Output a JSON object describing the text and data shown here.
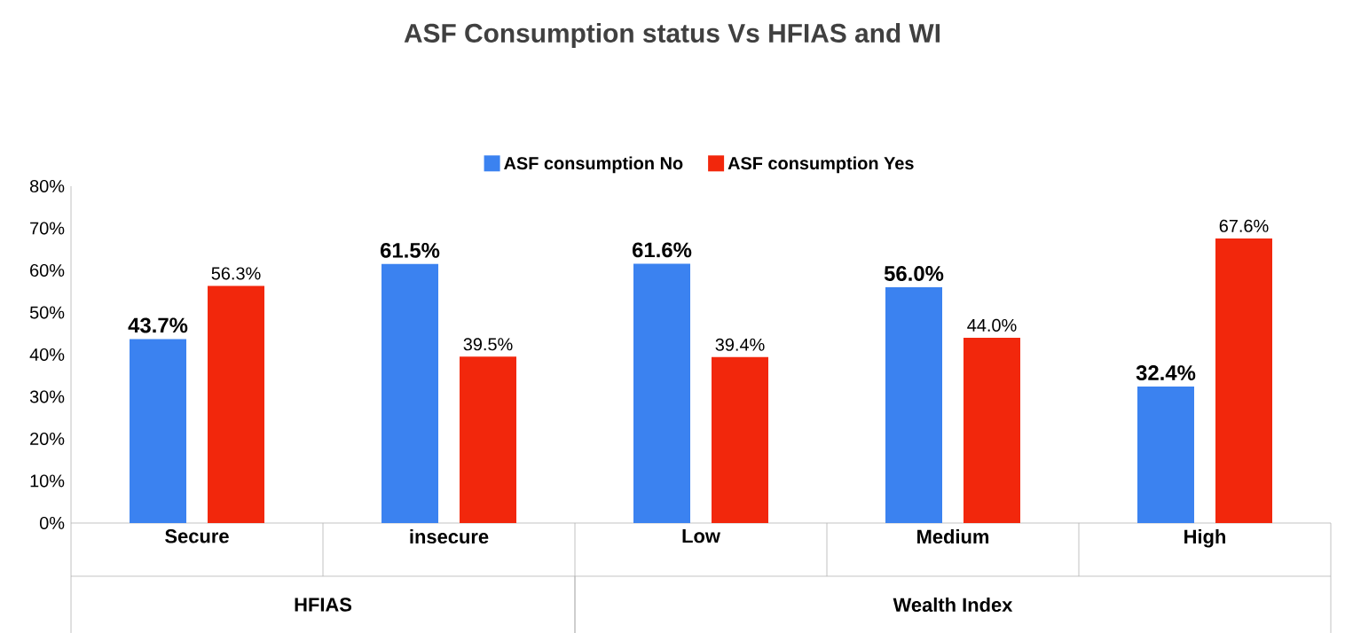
{
  "chart_data": {
    "type": "bar",
    "title": "ASF Consumption status Vs HFIAS and WI",
    "categories": [
      "Secure",
      "insecure",
      "Low",
      "Medium",
      "High"
    ],
    "series": [
      {
        "name": "ASF consumption No",
        "color": "#3b82f0",
        "values": [
          43.7,
          61.5,
          61.6,
          56.0,
          32.4
        ],
        "value_labels": [
          "43.7%",
          "61.5%",
          "61.6%",
          "56.0%",
          "32.4%"
        ]
      },
      {
        "name": "ASF consumption Yes",
        "color": "#f2270c",
        "values": [
          56.3,
          39.5,
          39.4,
          44.0,
          67.6
        ],
        "value_labels": [
          "56.3%",
          "39.5%",
          "39.4%",
          "44.0%",
          "67.6%"
        ]
      }
    ],
    "ylim": [
      0,
      80
    ],
    "yticks": [
      {
        "value": 0,
        "label": "0%"
      },
      {
        "value": 10,
        "label": "10%"
      },
      {
        "value": 20,
        "label": "20%"
      },
      {
        "value": 30,
        "label": "30%"
      },
      {
        "value": 40,
        "label": "40%"
      },
      {
        "value": 50,
        "label": "50%"
      },
      {
        "value": 60,
        "label": "60%"
      },
      {
        "value": 70,
        "label": "70%"
      },
      {
        "value": 80,
        "label": "80%"
      }
    ],
    "legend": "top",
    "annotations": [
      "HFIAS",
      "Wealth Index"
    ]
  }
}
